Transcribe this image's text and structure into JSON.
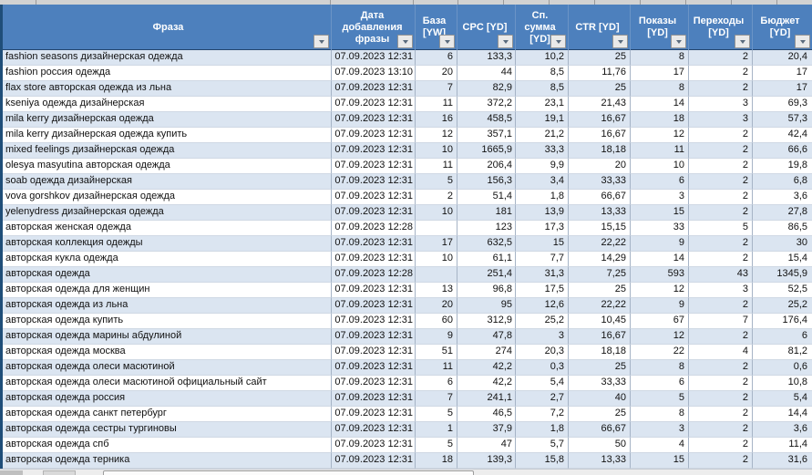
{
  "colors": {
    "header_bg": "#4d80bd",
    "header_text": "#ffffff",
    "banded_row_bg": "#dbe5f1",
    "plain_row_bg": "#ffffff",
    "accent_dark_strip": "#1f4e79"
  },
  "table": {
    "columns": [
      {
        "id": "phrase",
        "label": "Фраза",
        "lines": [
          "Фраза"
        ]
      },
      {
        "id": "date",
        "label": "Дата добавления фразы",
        "lines": [
          "Дата",
          "добавления",
          "фразы"
        ]
      },
      {
        "id": "base",
        "label": "База [YW]",
        "lines": [
          "База",
          "[YW]"
        ]
      },
      {
        "id": "cpc",
        "label": "CPC [YD]",
        "lines": [
          "CPC [YD]"
        ]
      },
      {
        "id": "avg",
        "label": "Сп. сумма [YD]",
        "lines": [
          "Сп.",
          "сумма",
          "[YD]"
        ]
      },
      {
        "id": "ctr",
        "label": "CTR [YD]",
        "lines": [
          "CTR [YD]"
        ]
      },
      {
        "id": "imp",
        "label": "Показы [YD]",
        "lines": [
          "Показы",
          "[YD]"
        ]
      },
      {
        "id": "clicks",
        "label": "Переходы [YD]",
        "lines": [
          "Переходы",
          "[YD]"
        ]
      },
      {
        "id": "budget",
        "label": "Бюджет [YD]",
        "lines": [
          "Бюджет",
          "[YD]"
        ]
      }
    ],
    "rows": [
      {
        "phrase": "fashion seasons дизайнерская одежда",
        "date": "07.09.2023 12:31",
        "base": "6",
        "cpc": "133,3",
        "avg": "10,2",
        "ctr": "25",
        "imp": "8",
        "clicks": "2",
        "budget": "20,4"
      },
      {
        "phrase": "fashion россия одежда",
        "date": "07.09.2023 13:10",
        "base": "20",
        "cpc": "44",
        "avg": "8,5",
        "ctr": "11,76",
        "imp": "17",
        "clicks": "2",
        "budget": "17"
      },
      {
        "phrase": "flax store авторская одежда из льна",
        "date": "07.09.2023 12:31",
        "base": "7",
        "cpc": "82,9",
        "avg": "8,5",
        "ctr": "25",
        "imp": "8",
        "clicks": "2",
        "budget": "17"
      },
      {
        "phrase": "kseniya одежда дизайнерская",
        "date": "07.09.2023 12:31",
        "base": "11",
        "cpc": "372,2",
        "avg": "23,1",
        "ctr": "21,43",
        "imp": "14",
        "clicks": "3",
        "budget": "69,3"
      },
      {
        "phrase": "mila kerry дизайнерская одежда",
        "date": "07.09.2023 12:31",
        "base": "16",
        "cpc": "458,5",
        "avg": "19,1",
        "ctr": "16,67",
        "imp": "18",
        "clicks": "3",
        "budget": "57,3"
      },
      {
        "phrase": "mila kerry дизайнерская одежда купить",
        "date": "07.09.2023 12:31",
        "base": "12",
        "cpc": "357,1",
        "avg": "21,2",
        "ctr": "16,67",
        "imp": "12",
        "clicks": "2",
        "budget": "42,4"
      },
      {
        "phrase": "mixed feelings дизайнерская одежда",
        "date": "07.09.2023 12:31",
        "base": "10",
        "cpc": "1665,9",
        "avg": "33,3",
        "ctr": "18,18",
        "imp": "11",
        "clicks": "2",
        "budget": "66,6"
      },
      {
        "phrase": "olesya masyutina авторская одежда",
        "date": "07.09.2023 12:31",
        "base": "11",
        "cpc": "206,4",
        "avg": "9,9",
        "ctr": "20",
        "imp": "10",
        "clicks": "2",
        "budget": "19,8"
      },
      {
        "phrase": "soab одежда дизайнерская",
        "date": "07.09.2023 12:31",
        "base": "5",
        "cpc": "156,3",
        "avg": "3,4",
        "ctr": "33,33",
        "imp": "6",
        "clicks": "2",
        "budget": "6,8"
      },
      {
        "phrase": "vova gorshkov дизайнерская одежда",
        "date": "07.09.2023 12:31",
        "base": "2",
        "cpc": "51,4",
        "avg": "1,8",
        "ctr": "66,67",
        "imp": "3",
        "clicks": "2",
        "budget": "3,6"
      },
      {
        "phrase": "yelenydress дизайнерская одежда",
        "date": "07.09.2023 12:31",
        "base": "10",
        "cpc": "181",
        "avg": "13,9",
        "ctr": "13,33",
        "imp": "15",
        "clicks": "2",
        "budget": "27,8"
      },
      {
        "phrase": "авторская женская одежда",
        "date": "07.09.2023 12:28",
        "base": "",
        "cpc": "123",
        "avg": "17,3",
        "ctr": "15,15",
        "imp": "33",
        "clicks": "5",
        "budget": "86,5"
      },
      {
        "phrase": "авторская коллекция одежды",
        "date": "07.09.2023 12:31",
        "base": "17",
        "cpc": "632,5",
        "avg": "15",
        "ctr": "22,22",
        "imp": "9",
        "clicks": "2",
        "budget": "30"
      },
      {
        "phrase": "авторская кукла одежда",
        "date": "07.09.2023 12:31",
        "base": "10",
        "cpc": "61,1",
        "avg": "7,7",
        "ctr": "14,29",
        "imp": "14",
        "clicks": "2",
        "budget": "15,4"
      },
      {
        "phrase": "авторская одежда",
        "date": "07.09.2023 12:28",
        "base": "",
        "cpc": "251,4",
        "avg": "31,3",
        "ctr": "7,25",
        "imp": "593",
        "clicks": "43",
        "budget": "1345,9"
      },
      {
        "phrase": "авторская одежда для женщин",
        "date": "07.09.2023 12:31",
        "base": "13",
        "cpc": "96,8",
        "avg": "17,5",
        "ctr": "25",
        "imp": "12",
        "clicks": "3",
        "budget": "52,5"
      },
      {
        "phrase": "авторская одежда из льна",
        "date": "07.09.2023 12:31",
        "base": "20",
        "cpc": "95",
        "avg": "12,6",
        "ctr": "22,22",
        "imp": "9",
        "clicks": "2",
        "budget": "25,2"
      },
      {
        "phrase": "авторская одежда купить",
        "date": "07.09.2023 12:31",
        "base": "60",
        "cpc": "312,9",
        "avg": "25,2",
        "ctr": "10,45",
        "imp": "67",
        "clicks": "7",
        "budget": "176,4"
      },
      {
        "phrase": "авторская одежда марины абдулиной",
        "date": "07.09.2023 12:31",
        "base": "9",
        "cpc": "47,8",
        "avg": "3",
        "ctr": "16,67",
        "imp": "12",
        "clicks": "2",
        "budget": "6"
      },
      {
        "phrase": "авторская одежда москва",
        "date": "07.09.2023 12:31",
        "base": "51",
        "cpc": "274",
        "avg": "20,3",
        "ctr": "18,18",
        "imp": "22",
        "clicks": "4",
        "budget": "81,2"
      },
      {
        "phrase": "авторская одежда олеси масютиной",
        "date": "07.09.2023 12:31",
        "base": "11",
        "cpc": "42,2",
        "avg": "0,3",
        "ctr": "25",
        "imp": "8",
        "clicks": "2",
        "budget": "0,6"
      },
      {
        "phrase": "авторская одежда олеси масютиной официальный сайт",
        "date": "07.09.2023 12:31",
        "base": "6",
        "cpc": "42,2",
        "avg": "5,4",
        "ctr": "33,33",
        "imp": "6",
        "clicks": "2",
        "budget": "10,8"
      },
      {
        "phrase": "авторская одежда россия",
        "date": "07.09.2023 12:31",
        "base": "7",
        "cpc": "241,1",
        "avg": "2,7",
        "ctr": "40",
        "imp": "5",
        "clicks": "2",
        "budget": "5,4"
      },
      {
        "phrase": "авторская одежда санкт петербург",
        "date": "07.09.2023 12:31",
        "base": "5",
        "cpc": "46,5",
        "avg": "7,2",
        "ctr": "25",
        "imp": "8",
        "clicks": "2",
        "budget": "14,4"
      },
      {
        "phrase": "авторская одежда сестры тургиновы",
        "date": "07.09.2023 12:31",
        "base": "1",
        "cpc": "37,9",
        "avg": "1,8",
        "ctr": "66,67",
        "imp": "3",
        "clicks": "2",
        "budget": "3,6"
      },
      {
        "phrase": "авторская одежда спб",
        "date": "07.09.2023 12:31",
        "base": "5",
        "cpc": "47",
        "avg": "5,7",
        "ctr": "50",
        "imp": "4",
        "clicks": "2",
        "budget": "11,4"
      },
      {
        "phrase": "авторская одежда терника",
        "date": "07.09.2023 12:31",
        "base": "18",
        "cpc": "139,3",
        "avg": "15,8",
        "ctr": "13,33",
        "imp": "15",
        "clicks": "2",
        "budget": "31,6"
      }
    ]
  }
}
